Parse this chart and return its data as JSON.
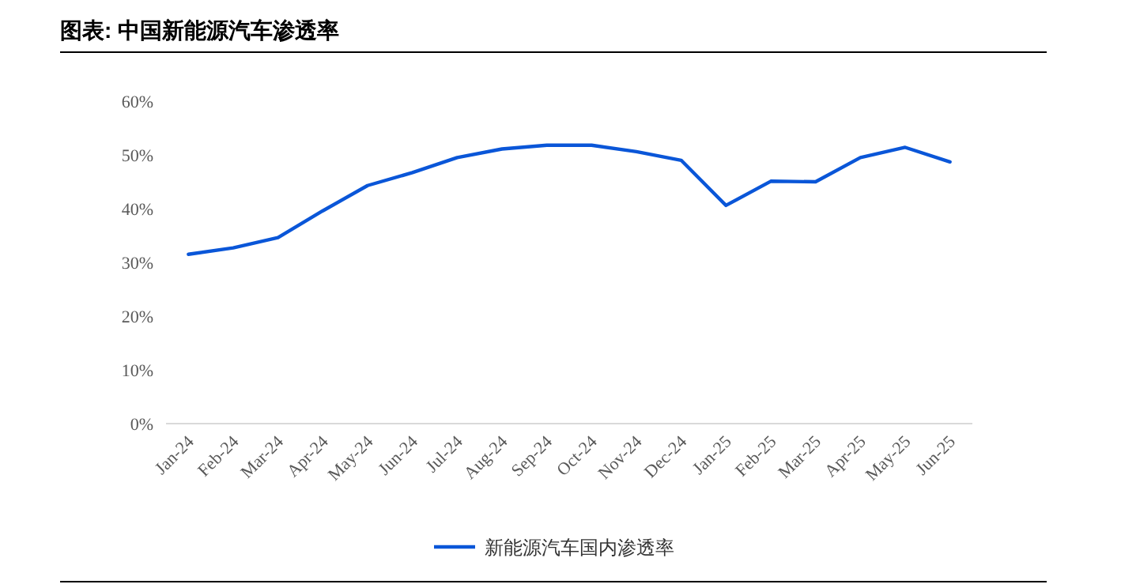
{
  "chart_data": {
    "type": "line",
    "title": "图表: 中国新能源汽车渗透率",
    "categories": [
      "Jan-24",
      "Feb-24",
      "Mar-24",
      "Apr-24",
      "May-24",
      "Jun-24",
      "Jul-24",
      "Aug-24",
      "Sep-24",
      "Oct-24",
      "Nov-24",
      "Dec-24",
      "Jan-25",
      "Feb-25",
      "Mar-25",
      "Apr-25",
      "May-25",
      "Jun-25"
    ],
    "series": [
      {
        "name": "新能源汽车国内渗透率",
        "color": "#0a56d8",
        "values": [
          31.5,
          32.7,
          34.6,
          39.6,
          44.3,
          46.7,
          49.5,
          51.1,
          51.8,
          51.8,
          50.6,
          49.0,
          40.6,
          45.1,
          45.0,
          49.5,
          51.4,
          48.7
        ]
      }
    ],
    "ylim": [
      0,
      60
    ],
    "yticks": [
      {
        "value": 0,
        "label": "0%"
      },
      {
        "value": 10,
        "label": "10%"
      },
      {
        "value": 20,
        "label": "20%"
      },
      {
        "value": 30,
        "label": "30%"
      },
      {
        "value": 40,
        "label": "40%"
      },
      {
        "value": 50,
        "label": "50%"
      },
      {
        "value": 60,
        "label": "60%"
      }
    ],
    "legend": "bottom",
    "grid": false,
    "marker": "none",
    "line_style": "solid"
  }
}
